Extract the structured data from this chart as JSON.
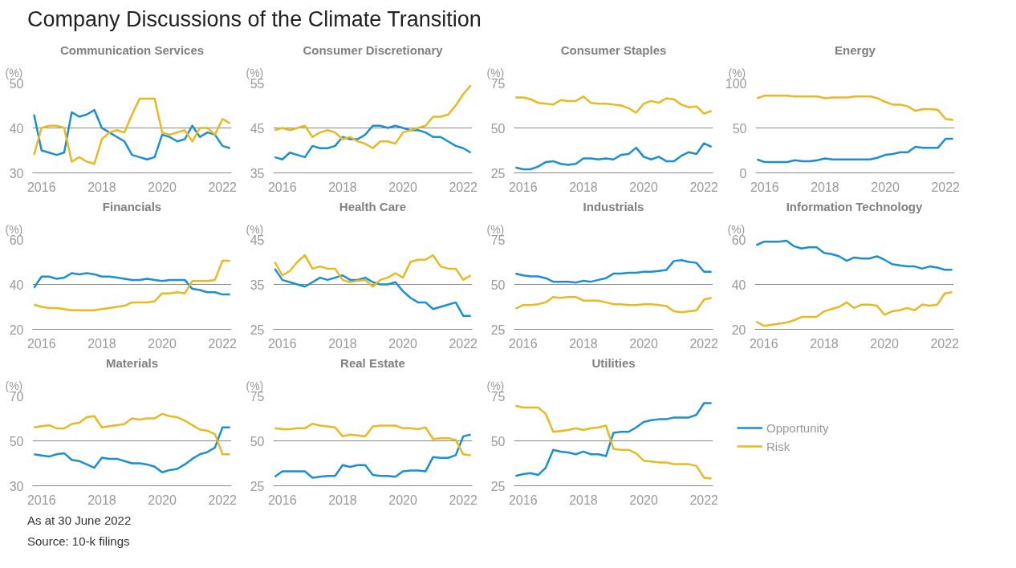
{
  "chart_data": [
    {
      "type": "line",
      "title": "Communication Services",
      "ylabel": "(%)",
      "x": [
        2015.75,
        2016.0,
        2016.25,
        2016.5,
        2016.75,
        2017.0,
        2017.25,
        2017.5,
        2017.75,
        2018.0,
        2018.25,
        2018.5,
        2018.75,
        2019.0,
        2019.25,
        2019.5,
        2019.75,
        2020.0,
        2020.25,
        2020.5,
        2020.75,
        2021.0,
        2021.25,
        2021.5,
        2021.75,
        2022.0,
        2022.25
      ],
      "xlim": [
        2015.7,
        2022.3
      ],
      "xticks": [
        2016,
        2018,
        2020,
        2022
      ],
      "ylim": [
        30,
        50
      ],
      "yticks": [
        30,
        40,
        50
      ],
      "grid": "y",
      "series": [
        {
          "color": "#1a8fd1",
          "values": [
            43,
            35,
            34.5,
            34,
            34.5,
            43.5,
            42.5,
            43,
            44,
            40,
            39,
            38,
            37,
            34,
            33.5,
            33,
            33.5,
            38.5,
            38,
            37,
            37.5,
            40.5,
            38,
            39,
            38.5,
            36,
            35.5
          ]
        },
        {
          "color": "#e8b920",
          "values": [
            34,
            40,
            40.5,
            40.5,
            40,
            32.5,
            33.5,
            32.5,
            32,
            37.5,
            39,
            39.5,
            39,
            43,
            46.5,
            46.5,
            46.5,
            39,
            38.5,
            39,
            39.5,
            37,
            40,
            40,
            38.5,
            42,
            41
          ]
        }
      ]
    },
    {
      "type": "line",
      "title": "Consumer Discretionary",
      "ylabel": "(%)",
      "x": [
        2015.75,
        2016.0,
        2016.25,
        2016.5,
        2016.75,
        2017.0,
        2017.25,
        2017.5,
        2017.75,
        2018.0,
        2018.25,
        2018.5,
        2018.75,
        2019.0,
        2019.25,
        2019.5,
        2019.75,
        2020.0,
        2020.25,
        2020.5,
        2020.75,
        2021.0,
        2021.25,
        2021.5,
        2021.75,
        2022.0,
        2022.25
      ],
      "xlim": [
        2015.7,
        2022.3
      ],
      "xticks": [
        2016,
        2018,
        2020,
        2022
      ],
      "ylim": [
        35,
        55
      ],
      "yticks": [
        35,
        45,
        55
      ],
      "grid": "y",
      "series": [
        {
          "color": "#1a8fd1",
          "values": [
            38.5,
            38,
            39.5,
            39,
            38.5,
            41,
            40.5,
            40.5,
            41,
            43,
            42.5,
            42.5,
            43.5,
            45.5,
            45.5,
            45,
            45.5,
            45,
            44.5,
            44.5,
            44,
            43,
            43,
            42,
            41,
            40.5,
            39.5
          ]
        },
        {
          "color": "#e8b920",
          "values": [
            44.5,
            45,
            44.5,
            45,
            45.5,
            43,
            44,
            44.5,
            44,
            42.5,
            43,
            42,
            41.5,
            40.5,
            42,
            42,
            41.5,
            44,
            44.5,
            45,
            45.5,
            47.5,
            47.5,
            48,
            50,
            52.5,
            54.5
          ]
        }
      ]
    },
    {
      "type": "line",
      "title": "Consumer Staples",
      "ylabel": "(%)",
      "x": [
        2015.75,
        2016.0,
        2016.25,
        2016.5,
        2016.75,
        2017.0,
        2017.25,
        2017.5,
        2017.75,
        2018.0,
        2018.25,
        2018.5,
        2018.75,
        2019.0,
        2019.25,
        2019.5,
        2019.75,
        2020.0,
        2020.25,
        2020.5,
        2020.75,
        2021.0,
        2021.25,
        2021.5,
        2021.75,
        2022.0,
        2022.25
      ],
      "xlim": [
        2015.7,
        2022.3
      ],
      "xticks": [
        2016,
        2018,
        2020,
        2022
      ],
      "ylim": [
        25,
        75
      ],
      "yticks": [
        25,
        50,
        75
      ],
      "grid": "y",
      "series": [
        {
          "color": "#1a8fd1",
          "values": [
            28,
            27,
            27,
            28.5,
            31,
            31.5,
            30,
            29.5,
            30,
            33,
            33,
            32.5,
            33,
            32.5,
            35,
            35.5,
            39,
            34,
            32.5,
            34,
            31.5,
            31.5,
            34.5,
            36.5,
            35.5,
            41.5,
            39.5
          ]
        },
        {
          "color": "#e8b920",
          "values": [
            67,
            67,
            66,
            64,
            63.5,
            63,
            65.5,
            65,
            65,
            67.5,
            64,
            63.5,
            63.5,
            63,
            62.5,
            61,
            58.5,
            63.5,
            65,
            64,
            66.5,
            66,
            63,
            61.5,
            62,
            58,
            59.5
          ]
        }
      ]
    },
    {
      "type": "line",
      "title": "Energy",
      "ylabel": "(%)",
      "x": [
        2015.75,
        2016.0,
        2016.25,
        2016.5,
        2016.75,
        2017.0,
        2017.25,
        2017.5,
        2017.75,
        2018.0,
        2018.25,
        2018.5,
        2018.75,
        2019.0,
        2019.25,
        2019.5,
        2019.75,
        2020.0,
        2020.25,
        2020.5,
        2020.75,
        2021.0,
        2021.25,
        2021.5,
        2021.75,
        2022.0,
        2022.25
      ],
      "xlim": [
        2015.7,
        2022.3
      ],
      "xticks": [
        2016,
        2018,
        2020,
        2022
      ],
      "ylim": [
        0,
        100
      ],
      "yticks": [
        0,
        50,
        100
      ],
      "grid": "y",
      "series": [
        {
          "color": "#1a8fd1",
          "values": [
            15,
            12,
            12,
            12,
            12,
            14,
            13,
            13,
            14,
            16,
            15,
            15,
            15,
            15,
            15,
            15,
            17,
            20,
            21,
            23,
            23,
            29,
            28,
            28,
            28,
            38,
            38
          ]
        },
        {
          "color": "#e8b920",
          "values": [
            83,
            86,
            86,
            86,
            86,
            85,
            85,
            85,
            85,
            83,
            84,
            84,
            84,
            85,
            85,
            85,
            83,
            79,
            76,
            76,
            74,
            69,
            71,
            71,
            70,
            60,
            59
          ]
        }
      ]
    },
    {
      "type": "line",
      "title": "Financials",
      "ylabel": "(%)",
      "x": [
        2015.75,
        2016.0,
        2016.25,
        2016.5,
        2016.75,
        2017.0,
        2017.25,
        2017.5,
        2017.75,
        2018.0,
        2018.25,
        2018.5,
        2018.75,
        2019.0,
        2019.25,
        2019.5,
        2019.75,
        2020.0,
        2020.25,
        2020.5,
        2020.75,
        2021.0,
        2021.25,
        2021.5,
        2021.75,
        2022.0,
        2022.25
      ],
      "xlim": [
        2015.7,
        2022.3
      ],
      "xticks": [
        2016,
        2018,
        2020,
        2022
      ],
      "ylim": [
        20,
        60
      ],
      "yticks": [
        20,
        40,
        60
      ],
      "grid": "y",
      "series": [
        {
          "color": "#1a8fd1",
          "values": [
            38.5,
            43.5,
            43.5,
            42.5,
            43,
            45,
            44.5,
            45,
            44.5,
            43.5,
            43.5,
            43,
            42.5,
            42,
            42,
            42.5,
            42,
            41.5,
            42,
            42,
            42,
            38,
            37.5,
            36.5,
            36.5,
            35.5,
            35.5
          ]
        },
        {
          "color": "#e8b920",
          "values": [
            31,
            30,
            29.5,
            29.5,
            29,
            28.5,
            28.5,
            28.5,
            28.5,
            29,
            29.5,
            30,
            30.5,
            32,
            32,
            32,
            32.5,
            36,
            36,
            36.5,
            36,
            41.5,
            41.5,
            41.5,
            42,
            50.5,
            50.5
          ]
        }
      ]
    },
    {
      "type": "line",
      "title": "Health Care",
      "ylabel": "(%)",
      "x": [
        2015.75,
        2016.0,
        2016.25,
        2016.5,
        2016.75,
        2017.0,
        2017.25,
        2017.5,
        2017.75,
        2018.0,
        2018.25,
        2018.5,
        2018.75,
        2019.0,
        2019.25,
        2019.5,
        2019.75,
        2020.0,
        2020.25,
        2020.5,
        2020.75,
        2021.0,
        2021.25,
        2021.5,
        2021.75,
        2022.0,
        2022.25
      ],
      "xlim": [
        2015.7,
        2022.3
      ],
      "xticks": [
        2016,
        2018,
        2020,
        2022
      ],
      "ylim": [
        25,
        45
      ],
      "yticks": [
        25,
        35,
        45
      ],
      "grid": "y",
      "series": [
        {
          "color": "#1a8fd1",
          "values": [
            38.5,
            36,
            35.5,
            35,
            34.5,
            35.5,
            36.5,
            36,
            36.5,
            37,
            36,
            36,
            36.5,
            35.5,
            35,
            35,
            35.5,
            33.5,
            32,
            31,
            31,
            29.5,
            30,
            30.5,
            31,
            28,
            28
          ]
        },
        {
          "color": "#e8b920",
          "values": [
            40,
            37,
            38,
            40,
            41.5,
            38.5,
            39,
            38.5,
            38.5,
            36,
            35.5,
            35.8,
            36,
            34.5,
            36,
            36.5,
            37.5,
            36.5,
            40,
            40.5,
            40.5,
            41.5,
            39,
            38.5,
            38.5,
            36,
            37
          ]
        }
      ]
    },
    {
      "type": "line",
      "title": "Industrials",
      "ylabel": "(%)",
      "x": [
        2015.75,
        2016.0,
        2016.25,
        2016.5,
        2016.75,
        2017.0,
        2017.25,
        2017.5,
        2017.75,
        2018.0,
        2018.25,
        2018.5,
        2018.75,
        2019.0,
        2019.25,
        2019.5,
        2019.75,
        2020.0,
        2020.25,
        2020.5,
        2020.75,
        2021.0,
        2021.25,
        2021.5,
        2021.75,
        2022.0,
        2022.25
      ],
      "xlim": [
        2015.7,
        2022.3
      ],
      "xticks": [
        2016,
        2018,
        2020,
        2022
      ],
      "ylim": [
        25,
        75
      ],
      "yticks": [
        25,
        50,
        75
      ],
      "grid": "y",
      "series": [
        {
          "color": "#1a8fd1",
          "values": [
            56,
            55,
            54.5,
            54.5,
            53.5,
            51.5,
            51.5,
            51.5,
            51,
            52,
            51.5,
            52.5,
            53.5,
            56,
            56,
            56.5,
            56.5,
            57,
            57,
            57.5,
            58,
            63,
            63.5,
            62.5,
            62,
            57,
            57
          ]
        },
        {
          "color": "#e8b920",
          "values": [
            36.5,
            38.5,
            38.5,
            39,
            40,
            43,
            42.5,
            43,
            43,
            41,
            41,
            41,
            40,
            39,
            39,
            38.5,
            38.5,
            39,
            39,
            38.5,
            38,
            35,
            34.5,
            35,
            35.5,
            41.5,
            42.5
          ]
        }
      ]
    },
    {
      "type": "line",
      "title": "Information Technology",
      "ylabel": "(%)",
      "x": [
        2015.75,
        2016.0,
        2016.25,
        2016.5,
        2016.75,
        2017.0,
        2017.25,
        2017.5,
        2017.75,
        2018.0,
        2018.25,
        2018.5,
        2018.75,
        2019.0,
        2019.25,
        2019.5,
        2019.75,
        2020.0,
        2020.25,
        2020.5,
        2020.75,
        2021.0,
        2021.25,
        2021.5,
        2021.75,
        2022.0,
        2022.25
      ],
      "xlim": [
        2015.7,
        2022.3
      ],
      "xticks": [
        2016,
        2018,
        2020,
        2022
      ],
      "ylim": [
        20,
        60
      ],
      "yticks": [
        20,
        40,
        60
      ],
      "grid": "y",
      "series": [
        {
          "color": "#1a8fd1",
          "values": [
            57.5,
            59,
            59,
            59,
            59.5,
            57,
            56,
            56.5,
            56.5,
            54,
            53.5,
            52.5,
            50.5,
            52,
            51.5,
            51.5,
            52.5,
            51,
            49,
            48.5,
            48,
            48,
            47,
            48,
            47.5,
            46.5,
            46.5
          ]
        },
        {
          "color": "#e8b920",
          "values": [
            23.5,
            21.5,
            22,
            22.5,
            23,
            24,
            25.5,
            25.5,
            25.5,
            28,
            29,
            30,
            32,
            29.5,
            31,
            31,
            30.5,
            26.5,
            28,
            28.5,
            29.5,
            28.5,
            31,
            30.5,
            31,
            36,
            36.5
          ]
        }
      ]
    },
    {
      "type": "line",
      "title": "Materials",
      "ylabel": "(%)",
      "x": [
        2015.75,
        2016.0,
        2016.25,
        2016.5,
        2016.75,
        2017.0,
        2017.25,
        2017.5,
        2017.75,
        2018.0,
        2018.25,
        2018.5,
        2018.75,
        2019.0,
        2019.25,
        2019.5,
        2019.75,
        2020.0,
        2020.25,
        2020.5,
        2020.75,
        2021.0,
        2021.25,
        2021.5,
        2021.75,
        2022.0,
        2022.25
      ],
      "xlim": [
        2015.7,
        2022.3
      ],
      "xticks": [
        2016,
        2018,
        2020,
        2022
      ],
      "ylim": [
        30,
        70
      ],
      "yticks": [
        30,
        50,
        70
      ],
      "grid": "y",
      "series": [
        {
          "color": "#1a8fd1",
          "values": [
            44,
            43.5,
            43,
            44,
            44.5,
            41.5,
            41,
            39.5,
            38,
            42.5,
            42,
            42,
            41,
            40,
            40,
            39.5,
            38.5,
            36,
            37,
            37.5,
            39.5,
            42,
            44,
            45,
            47,
            56,
            56
          ]
        },
        {
          "color": "#e8b920",
          "values": [
            56,
            56.5,
            57,
            55.5,
            55.5,
            57.5,
            58,
            60.5,
            61,
            56,
            56.5,
            57,
            57.5,
            60,
            59.5,
            60,
            60,
            62,
            61,
            60.5,
            59,
            57,
            55,
            54.5,
            53,
            44,
            44
          ]
        }
      ]
    },
    {
      "type": "line",
      "title": "Real Estate",
      "ylabel": "(%)",
      "x": [
        2015.75,
        2016.0,
        2016.25,
        2016.5,
        2016.75,
        2017.0,
        2017.25,
        2017.5,
        2017.75,
        2018.0,
        2018.25,
        2018.5,
        2018.75,
        2019.0,
        2019.25,
        2019.5,
        2019.75,
        2020.0,
        2020.25,
        2020.5,
        2020.75,
        2021.0,
        2021.25,
        2021.5,
        2021.75,
        2022.0,
        2022.25
      ],
      "xlim": [
        2015.7,
        2022.3
      ],
      "xticks": [
        2016,
        2018,
        2020,
        2022
      ],
      "ylim": [
        25,
        75
      ],
      "yticks": [
        25,
        50,
        75
      ],
      "grid": "y",
      "series": [
        {
          "color": "#1a8fd1",
          "values": [
            30,
            33,
            33,
            33,
            33,
            29.5,
            30,
            30.5,
            30.5,
            36.5,
            35.5,
            36.5,
            36.5,
            31,
            30.5,
            30.5,
            30,
            33,
            33.5,
            33.5,
            33,
            41,
            40.5,
            40.5,
            42,
            52.5,
            53.5
          ]
        },
        {
          "color": "#e8b920",
          "values": [
            57,
            56.5,
            56.5,
            57,
            57,
            59.5,
            58.5,
            58,
            57.5,
            52.5,
            53.5,
            53,
            52.5,
            58,
            58.5,
            58.5,
            58.5,
            57,
            57,
            56.5,
            57.5,
            51,
            51.5,
            51.5,
            50.5,
            42.5,
            42
          ]
        }
      ]
    },
    {
      "type": "line",
      "title": "Utilities",
      "ylabel": "(%)",
      "x": [
        2015.75,
        2016.0,
        2016.25,
        2016.5,
        2016.75,
        2017.0,
        2017.25,
        2017.5,
        2017.75,
        2018.0,
        2018.25,
        2018.5,
        2018.75,
        2019.0,
        2019.25,
        2019.5,
        2019.75,
        2020.0,
        2020.25,
        2020.5,
        2020.75,
        2021.0,
        2021.25,
        2021.5,
        2021.75,
        2022.0,
        2022.25
      ],
      "xlim": [
        2015.7,
        2022.3
      ],
      "xticks": [
        2016,
        2018,
        2020,
        2022
      ],
      "ylim": [
        25,
        75
      ],
      "yticks": [
        25,
        50,
        75
      ],
      "grid": "y",
      "legend": "right",
      "series": [
        {
          "name": "Opportunity",
          "color": "#1a8fd1",
          "values": [
            30.5,
            31.5,
            32,
            31,
            35,
            45,
            44,
            43.5,
            42.5,
            44,
            42.5,
            42.5,
            41.5,
            54.5,
            55,
            55,
            57.5,
            60.5,
            61.5,
            62,
            62,
            63,
            63,
            63,
            64.5,
            71,
            71
          ]
        },
        {
          "name": "Risk",
          "color": "#e8b920",
          "values": [
            69.5,
            68.5,
            68.5,
            68.5,
            65,
            55,
            55.5,
            56,
            57,
            56,
            57,
            57.5,
            58.5,
            45.5,
            45,
            45,
            43,
            39,
            38.5,
            38,
            38,
            37,
            37,
            37,
            36,
            29.5,
            29
          ]
        }
      ]
    },
    {
      "type": "other",
      "title": "Company Discussions of the Climate Transition",
      "annotations": [
        "As at 30 June 2022",
        "Source: 10-k filings"
      ]
    }
  ]
}
